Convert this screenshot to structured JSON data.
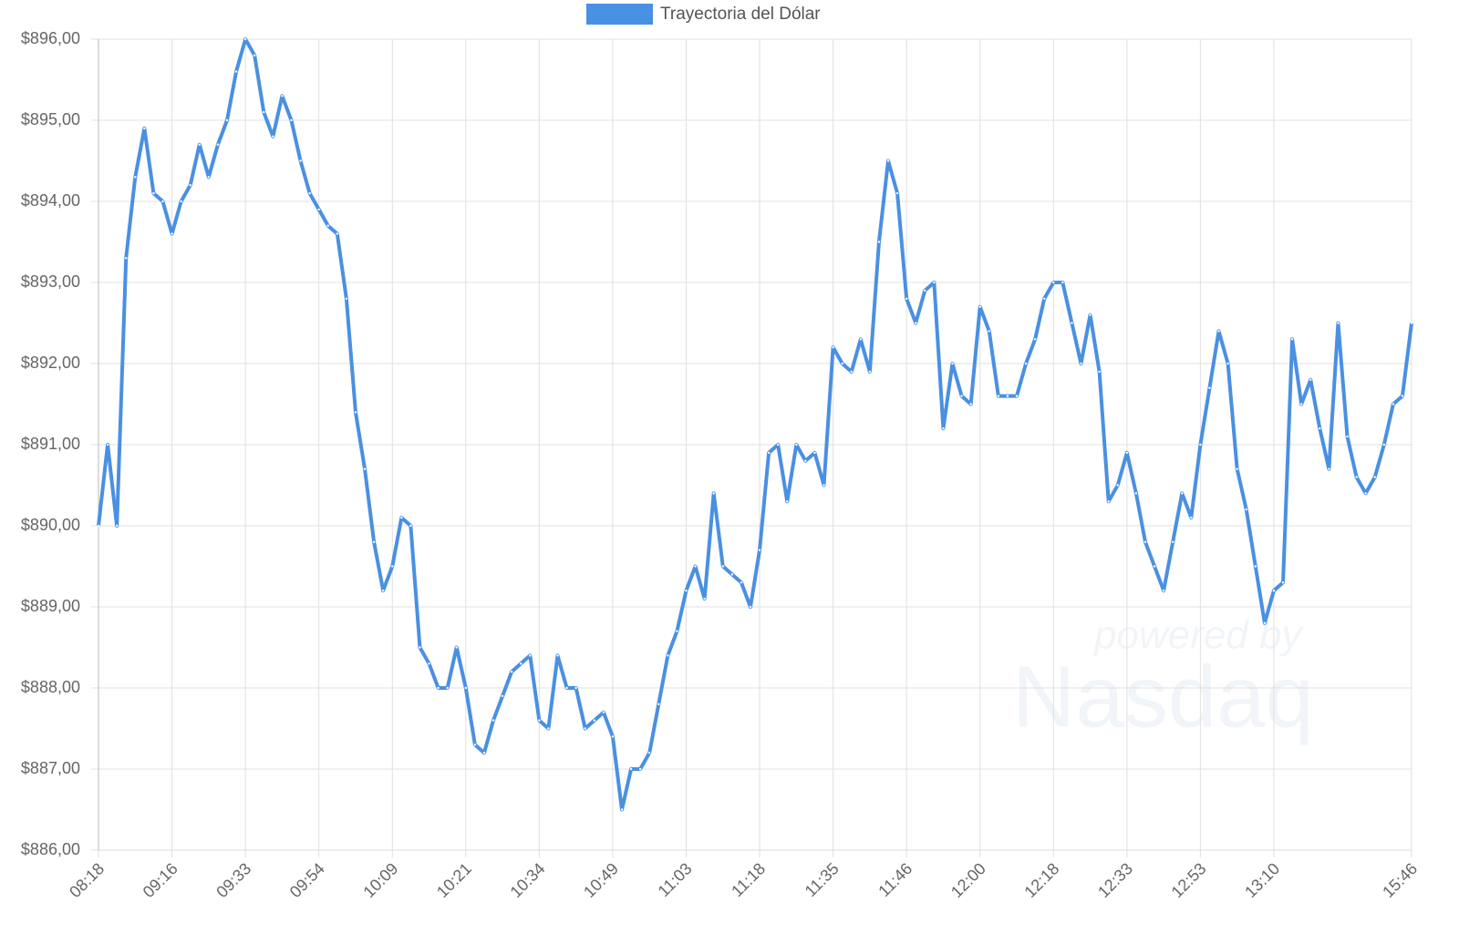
{
  "chart_data": {
    "type": "line",
    "watermark": [
      "powered by",
      "Nasdaq"
    ],
    "categories": [
      "08:18",
      null,
      null,
      null,
      null,
      null,
      null,
      null,
      "09:16",
      null,
      null,
      null,
      null,
      null,
      null,
      null,
      "09:33",
      null,
      null,
      null,
      null,
      null,
      null,
      null,
      "09:54",
      null,
      null,
      null,
      null,
      null,
      null,
      null,
      "10:09",
      null,
      null,
      null,
      null,
      null,
      null,
      null,
      "10:21",
      null,
      null,
      null,
      null,
      null,
      null,
      null,
      "10:34",
      null,
      null,
      null,
      null,
      null,
      null,
      null,
      "10:49",
      null,
      null,
      null,
      null,
      null,
      null,
      null,
      "11:03",
      null,
      null,
      null,
      null,
      null,
      null,
      null,
      "11:18",
      null,
      null,
      null,
      null,
      null,
      null,
      null,
      "11:35",
      null,
      null,
      null,
      null,
      null,
      null,
      null,
      "11:46",
      null,
      null,
      null,
      null,
      null,
      null,
      null,
      "12:00",
      null,
      null,
      null,
      null,
      null,
      null,
      null,
      "12:18",
      null,
      null,
      null,
      null,
      null,
      null,
      null,
      "12:33",
      null,
      null,
      null,
      null,
      null,
      null,
      null,
      "12:53",
      null,
      null,
      null,
      null,
      null,
      null,
      null,
      "13:10",
      null,
      null,
      null,
      null,
      null,
      null,
      null,
      null,
      null,
      null,
      null,
      null,
      null,
      null,
      "15:46"
    ],
    "series": [
      {
        "name": "Trayectoria del Dólar",
        "color": "#4a90e2",
        "values": [
          890.0,
          891.0,
          890.0,
          893.3,
          894.3,
          894.9,
          894.1,
          894.0,
          893.6,
          894.0,
          894.2,
          894.7,
          894.3,
          894.7,
          895.0,
          895.6,
          896.0,
          895.8,
          895.1,
          894.8,
          895.3,
          895.0,
          894.5,
          894.1,
          893.9,
          893.7,
          893.6,
          892.8,
          891.4,
          890.7,
          889.8,
          889.2,
          889.5,
          890.1,
          890.0,
          888.5,
          888.3,
          888.0,
          888.0,
          888.5,
          888.0,
          887.3,
          887.2,
          887.6,
          887.9,
          888.2,
          888.3,
          888.4,
          887.6,
          887.5,
          888.4,
          888.0,
          888.0,
          887.5,
          887.6,
          887.7,
          887.4,
          886.5,
          887.0,
          887.0,
          887.2,
          887.8,
          888.4,
          888.7,
          889.2,
          889.5,
          889.1,
          890.4,
          889.5,
          889.4,
          889.3,
          889.0,
          889.7,
          890.9,
          891.0,
          890.3,
          891.0,
          890.8,
          890.9,
          890.5,
          892.2,
          892.0,
          891.9,
          892.3,
          891.9,
          893.5,
          894.5,
          894.1,
          892.8,
          892.5,
          892.9,
          893.0,
          891.2,
          892.0,
          891.6,
          891.5,
          892.7,
          892.4,
          891.6,
          891.6,
          891.6,
          892.0,
          892.3,
          892.8,
          893.0,
          893.0,
          892.5,
          892.0,
          892.6,
          891.9,
          890.3,
          890.5,
          890.9,
          890.4,
          889.8,
          889.5,
          889.2,
          889.8,
          890.4,
          890.1,
          891.0,
          891.7,
          892.4,
          892.0,
          890.7,
          890.2,
          889.5,
          888.8,
          889.2,
          889.3,
          892.3,
          891.5,
          891.8,
          891.2,
          890.7,
          892.5,
          891.1,
          890.6,
          890.4,
          890.6,
          891.0,
          891.5,
          891.6,
          892.5
        ]
      }
    ],
    "ylim": [
      886,
      896
    ],
    "yticks": [
      {
        "value": 886,
        "label": "$886,00"
      },
      {
        "value": 887,
        "label": "$887,00"
      },
      {
        "value": 888,
        "label": "$888,00"
      },
      {
        "value": 889,
        "label": "$889,00"
      },
      {
        "value": 890,
        "label": "$890,00"
      },
      {
        "value": 891,
        "label": "$891,00"
      },
      {
        "value": 892,
        "label": "$892,00"
      },
      {
        "value": 893,
        "label": "$893,00"
      },
      {
        "value": 894,
        "label": "$894,00"
      },
      {
        "value": 895,
        "label": "$895,00"
      },
      {
        "value": 896,
        "label": "$896,00"
      }
    ],
    "grid": true
  }
}
